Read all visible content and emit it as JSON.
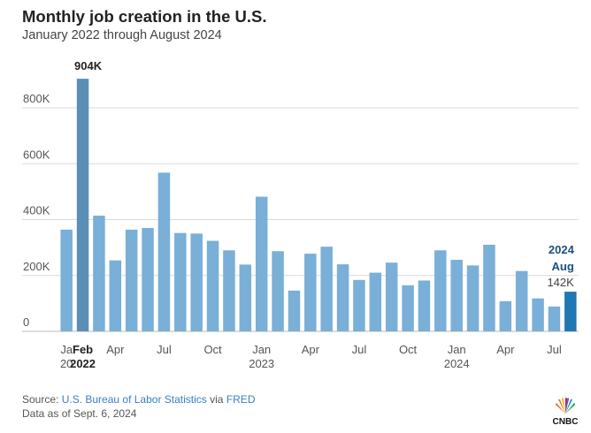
{
  "header": {
    "title": "Monthly job creation in the U.S.",
    "subtitle": "January 2022 through August 2024"
  },
  "footer": {
    "source_prefix": "Source: ",
    "source_link_1": "U.S. Bureau of Labor Statistics",
    "source_via": " via ",
    "source_link_2": "FRED",
    "as_of": "Data as of Sept. 6, 2024",
    "logo_text": "CNBC"
  },
  "colors": {
    "bar": "#7aafd7",
    "bar_highlight_peak": "#5c8fb6",
    "bar_highlight_latest": "#1f77b4",
    "grid": "#d9d9d9"
  },
  "chart_data": {
    "type": "bar",
    "categories": [
      "2022-01",
      "2022-02",
      "2022-03",
      "2022-04",
      "2022-05",
      "2022-06",
      "2022-07",
      "2022-08",
      "2022-09",
      "2022-10",
      "2022-11",
      "2022-12",
      "2023-01",
      "2023-02",
      "2023-03",
      "2023-04",
      "2023-05",
      "2023-06",
      "2023-07",
      "2023-08",
      "2023-09",
      "2023-10",
      "2023-11",
      "2023-12",
      "2024-01",
      "2024-02",
      "2024-03",
      "2024-04",
      "2024-05",
      "2024-06",
      "2024-07",
      "2024-08"
    ],
    "values": [
      364,
      904,
      414,
      254,
      364,
      370,
      568,
      352,
      350,
      324,
      290,
      239,
      482,
      287,
      146,
      278,
      303,
      240,
      184,
      210,
      246,
      165,
      182,
      290,
      256,
      236,
      310,
      108,
      216,
      118,
      89,
      142
    ],
    "yticks": [
      0,
      200,
      400,
      600,
      800
    ],
    "ytick_labels": [
      "0",
      "200K",
      "400K",
      "600K",
      "800K"
    ],
    "ylim": [
      0,
      960
    ],
    "grid": true,
    "xticks": [
      {
        "index": 0,
        "label": "Ja",
        "sub": "20",
        "bold": false
      },
      {
        "index": 1,
        "label": "Feb",
        "sub": "2022",
        "bold": true
      },
      {
        "index": 3,
        "label": "Apr",
        "sub": "",
        "bold": false
      },
      {
        "index": 6,
        "label": "Jul",
        "sub": "",
        "bold": false
      },
      {
        "index": 9,
        "label": "Oct",
        "sub": "",
        "bold": false
      },
      {
        "index": 12,
        "label": "Jan",
        "sub": "2023",
        "bold": false
      },
      {
        "index": 15,
        "label": "Apr",
        "sub": "",
        "bold": false
      },
      {
        "index": 18,
        "label": "Jul",
        "sub": "",
        "bold": false
      },
      {
        "index": 21,
        "label": "Oct",
        "sub": "",
        "bold": false
      },
      {
        "index": 24,
        "label": "Jan",
        "sub": "2024",
        "bold": false
      },
      {
        "index": 27,
        "label": "Apr",
        "sub": "",
        "bold": false
      },
      {
        "index": 30,
        "label": "Jul",
        "sub": "",
        "bold": false
      }
    ],
    "annotations": [
      {
        "index": 1,
        "lines": [
          "904K"
        ]
      },
      {
        "index": 31,
        "lines": [
          "2024",
          "Aug",
          "142K"
        ]
      }
    ]
  }
}
